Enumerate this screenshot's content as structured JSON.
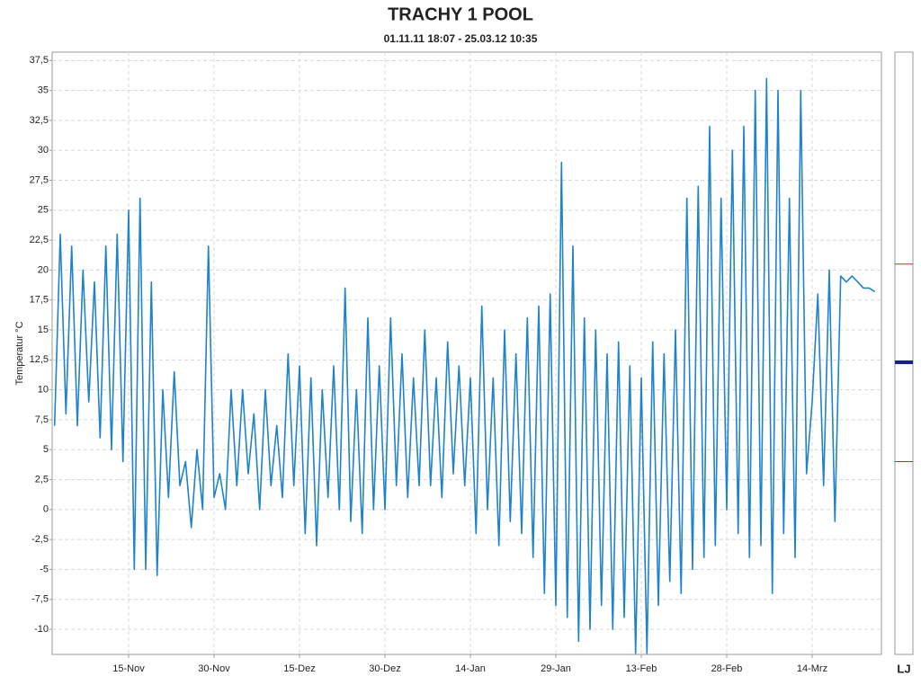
{
  "chart_data": {
    "type": "line",
    "title": "TRACHY 1 POOL",
    "subtitle": "01.11.11 18:07 - 25.03.12 10:35",
    "ylabel": "Temperatur  °C",
    "color": "#1f83c9",
    "grid": true,
    "categories": [
      null,
      null,
      null,
      null,
      null,
      null,
      null,
      null,
      null,
      null,
      null,
      null,
      null,
      "15-Nov",
      null,
      null,
      null,
      null,
      null,
      null,
      null,
      null,
      null,
      null,
      null,
      null,
      null,
      null,
      "30-Nov",
      null,
      null,
      null,
      null,
      null,
      null,
      null,
      null,
      null,
      null,
      null,
      null,
      null,
      null,
      "15-Dez",
      null,
      null,
      null,
      null,
      null,
      null,
      null,
      null,
      null,
      null,
      null,
      null,
      null,
      null,
      "30-Dez",
      null,
      null,
      null,
      null,
      null,
      null,
      null,
      null,
      null,
      null,
      null,
      null,
      null,
      null,
      "14-Jan",
      null,
      null,
      null,
      null,
      null,
      null,
      null,
      null,
      null,
      null,
      null,
      null,
      null,
      null,
      "29-Jan",
      null,
      null,
      null,
      null,
      null,
      null,
      null,
      null,
      null,
      null,
      null,
      null,
      null,
      null,
      "13-Feb",
      null,
      null,
      null,
      null,
      null,
      null,
      null,
      null,
      null,
      null,
      null,
      null,
      null,
      null,
      "28-Feb",
      null,
      null,
      null,
      null,
      null,
      null,
      null,
      null,
      null,
      null,
      null,
      null,
      null,
      null,
      "14-Mrz",
      null,
      null,
      null,
      null,
      null,
      null,
      null,
      null,
      null,
      null,
      null
    ],
    "values": [
      7,
      23,
      8,
      22,
      7,
      20,
      9,
      19,
      6,
      22,
      5,
      23,
      4,
      25,
      -5,
      26,
      -5,
      19,
      -5.5,
      10,
      1,
      11.5,
      2,
      4,
      -1.5,
      5,
      0,
      22,
      1,
      3,
      0,
      10,
      2,
      10,
      3,
      8,
      0,
      10,
      2,
      7,
      1,
      13,
      2,
      12,
      -2,
      11,
      -3,
      10,
      1,
      12,
      0,
      18.5,
      -1,
      10,
      -2,
      16,
      0,
      12,
      0,
      16,
      2,
      13,
      1,
      11,
      2,
      15,
      2,
      11,
      1,
      14,
      3,
      12,
      2,
      11,
      -2,
      17,
      0,
      11,
      -3,
      15,
      -1,
      13,
      -2,
      16,
      -4,
      17,
      -7,
      18,
      -8,
      29,
      -9,
      22,
      -11,
      16,
      -10,
      15,
      -8,
      13,
      -10,
      14,
      -9,
      12,
      -12,
      11,
      -12,
      14,
      -8,
      13,
      -6,
      15,
      -7,
      26,
      -5,
      27,
      -4,
      32,
      -3,
      26,
      0,
      30,
      -2,
      32,
      -4,
      35,
      -3,
      36,
      -7,
      35,
      -2,
      26,
      -4,
      35,
      3,
      9,
      18,
      2,
      20,
      -1,
      19.5,
      19,
      19.5,
      19,
      18.5,
      18.5,
      18.2
    ],
    "ylim": [
      -12.1,
      38.2
    ],
    "yticks": [
      -10,
      {
        "value": -7.5,
        "label": "-7,5"
      },
      -5,
      {
        "value": -2.5,
        "label": "-2,5"
      },
      0,
      {
        "value": 2.5,
        "label": "2,5"
      },
      5,
      {
        "value": 7.5,
        "label": "7,5"
      },
      10,
      {
        "value": 12.5,
        "label": "12,5"
      },
      15,
      {
        "value": 17.5,
        "label": "17,5"
      },
      20,
      {
        "value": 22.5,
        "label": "22,5"
      },
      25,
      {
        "value": 27.5,
        "label": "27,5"
      },
      30,
      {
        "value": 32.5,
        "label": "32,5"
      },
      35,
      {
        "value": 37.5,
        "label": "37,5"
      }
    ],
    "gauge": {
      "label": "LJ",
      "upper": 20.5,
      "lower": 4.0,
      "current": 12.3
    }
  }
}
